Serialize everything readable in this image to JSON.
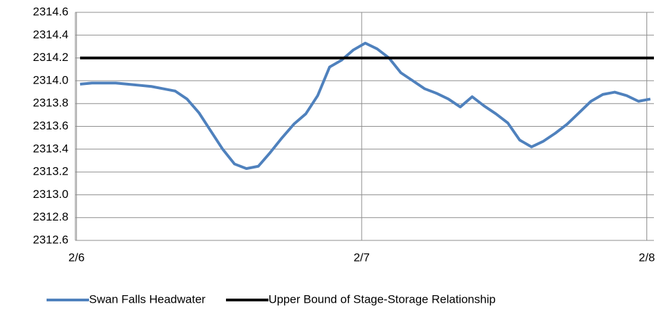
{
  "chart_data": {
    "type": "line",
    "x": [
      0.3,
      1.3,
      2.3,
      3.3,
      4.3,
      5.3,
      6.3,
      7.3,
      8.3,
      9.3,
      10.3,
      11.3,
      12.3,
      13.3,
      14.3,
      15.3,
      16.3,
      17.3,
      18.3,
      19.3,
      20.3,
      21.3,
      22.3,
      23.3,
      24.3,
      25.3,
      26.3,
      27.3,
      28.3,
      29.3,
      30.3,
      31.3,
      32.3,
      33.3,
      34.3,
      35.3,
      36.3,
      37.3,
      38.3,
      39.3,
      40.3,
      41.3,
      42.3,
      43.3,
      44.3,
      45.3,
      46.3,
      47.3,
      48.3
    ],
    "series": [
      {
        "name": "Swan Falls Headwater",
        "color": "#4f81bd",
        "values": [
          2313.97,
          2313.98,
          2313.98,
          2313.98,
          2313.97,
          2313.96,
          2313.95,
          2313.93,
          2313.91,
          2313.84,
          2313.72,
          2313.56,
          2313.4,
          2313.27,
          2313.23,
          2313.25,
          2313.37,
          2313.5,
          2313.62,
          2313.71,
          2313.87,
          2314.12,
          2314.18,
          2314.27,
          2314.33,
          2314.28,
          2314.2,
          2314.07,
          2314.0,
          2313.93,
          2313.89,
          2313.84,
          2313.77,
          2313.86,
          2313.78,
          2313.71,
          2313.63,
          2313.48,
          2313.42,
          2313.47,
          2313.54,
          2313.62,
          2313.72,
          2313.82,
          2313.88,
          2313.9,
          2313.87,
          2313.82,
          2313.84
        ]
      },
      {
        "name": "Upper Bound of Stage-Storage Relationship",
        "color": "#000000",
        "x": [
          0.3,
          48.6
        ],
        "values": [
          2314.2,
          2314.2
        ]
      }
    ],
    "xlim": [
      -0.1,
      48.6
    ],
    "xticks": [
      {
        "value": 0,
        "label": "2/6"
      },
      {
        "value": 24,
        "label": "2/7"
      },
      {
        "value": 48,
        "label": "2/8"
      }
    ],
    "ylim": [
      2312.6,
      2314.6
    ],
    "yticks": [
      2312.6,
      2312.8,
      {
        "value": 2313,
        "label": "2313.0"
      },
      2313.2,
      2313.4,
      2313.6,
      2313.8,
      {
        "value": 2314,
        "label": "2314.0"
      },
      2314.2,
      2314.4,
      2314.6
    ],
    "grid": true,
    "legend": "bottom"
  }
}
